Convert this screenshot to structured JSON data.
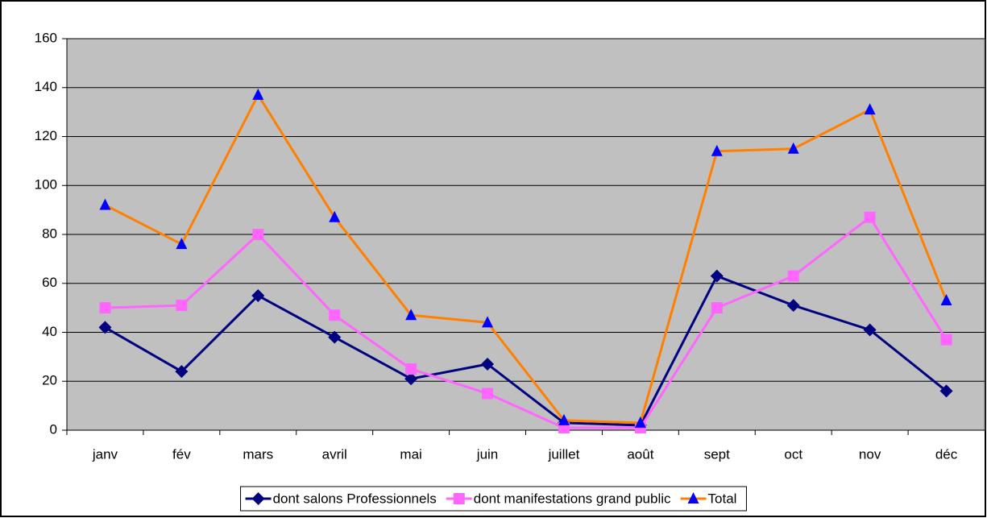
{
  "chart_data": {
    "type": "line",
    "categories": [
      "janv",
      "fév",
      "mars",
      "avril",
      "mai",
      "juin",
      "juillet",
      "août",
      "sept",
      "oct",
      "nov",
      "déc"
    ],
    "series": [
      {
        "name": "dont salons Professionnels",
        "color": "#000080",
        "marker": "diamond",
        "marker_color": "#000080",
        "values": [
          42,
          24,
          55,
          38,
          21,
          27,
          3,
          2,
          63,
          51,
          41,
          16
        ]
      },
      {
        "name": "dont manifestations grand public",
        "color": "#ff66ff",
        "marker": "square",
        "marker_color": "#ff66ff",
        "values": [
          50,
          51,
          80,
          47,
          25,
          15,
          1,
          1,
          50,
          63,
          87,
          37
        ]
      },
      {
        "name": "Total",
        "color": "#ff8000",
        "marker": "triangle",
        "marker_color": "#0000ff",
        "values": [
          92,
          76,
          137,
          87,
          47,
          44,
          4,
          3,
          114,
          115,
          131,
          53
        ]
      }
    ],
    "ylim": [
      0,
      160
    ],
    "yticks": [
      0,
      20,
      40,
      60,
      80,
      100,
      120,
      140,
      160
    ],
    "grid": true,
    "legend": "bottom"
  }
}
